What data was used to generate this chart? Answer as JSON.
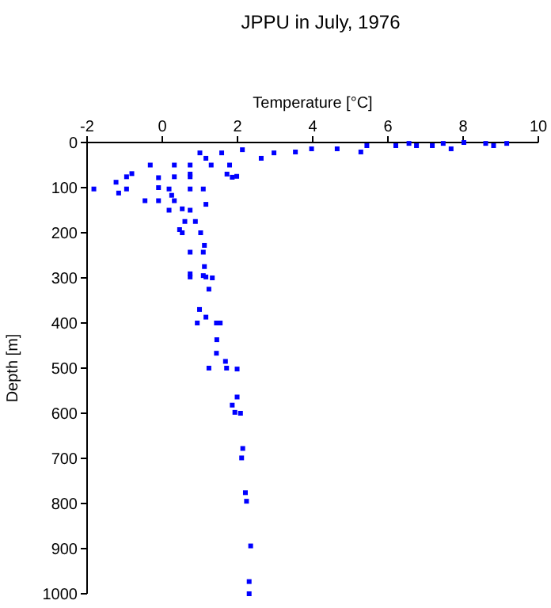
{
  "chart_data": {
    "type": "scatter",
    "title": "JPPU in July, 1976",
    "xlabel": "Temperature [°C]",
    "ylabel": "Depth [m]",
    "xlim": [
      -2,
      10
    ],
    "xticks": [
      -2,
      0,
      2,
      4,
      6,
      8,
      10
    ],
    "ylim": [
      1000,
      0
    ],
    "yticks": [
      0,
      100,
      200,
      300,
      400,
      500,
      600,
      700,
      800,
      900,
      1000
    ],
    "grid": false,
    "marker": "square",
    "series": [
      {
        "color": "#0000ff",
        "x": [
          6.56,
          7.47,
          8.02,
          8.6,
          9.16,
          7.18,
          7.68,
          6.76,
          6.21,
          5.44,
          5.28,
          4.65,
          3.97,
          3.54,
          2.97,
          2.63,
          2.13,
          1.58,
          1.0,
          8.81,
          -0.32,
          0.32,
          0.74,
          1.3,
          1.79,
          1.72,
          0.74,
          1.98,
          1.86,
          0.32,
          0.74,
          -0.81,
          -0.95,
          -1.23,
          -0.1,
          -1.82,
          -0.1,
          0.18,
          0.74,
          1.09,
          -1.16,
          -0.95,
          -0.46,
          -0.1,
          0.32,
          1.16,
          0.25,
          0.18,
          0.74,
          0.53,
          0.6,
          0.88,
          0.46,
          0.53,
          1.02,
          1.12,
          0.74,
          1.09,
          1.12,
          0.74,
          1.16,
          1.16,
          0.74,
          1.09,
          1.33,
          1.24,
          0.99,
          1.16,
          0.93,
          1.44,
          1.54,
          1.45,
          1.44,
          1.68,
          1.24,
          1.71,
          1.99,
          1.99,
          1.86,
          1.93,
          2.08,
          2.14,
          2.11,
          2.21,
          2.24,
          2.35,
          2.31,
          2.31
        ],
        "values": [
          2,
          2,
          0,
          2,
          2,
          7,
          14,
          7,
          7,
          7,
          21,
          14,
          14,
          21,
          23,
          35,
          16,
          23,
          23,
          7,
          50,
          50,
          50,
          50,
          50,
          70,
          70,
          75,
          77,
          76,
          76,
          69,
          76,
          88,
          78,
          103,
          100,
          103,
          103,
          103,
          112,
          103,
          129,
          129,
          129,
          137,
          117,
          150,
          150,
          147,
          175,
          175,
          193,
          200,
          200,
          228,
          243,
          243,
          275,
          298,
          298,
          35,
          291,
          295,
          300,
          325,
          370,
          387,
          400,
          400,
          400,
          437,
          467,
          485,
          500,
          500,
          502,
          564,
          582,
          598,
          600,
          678,
          699,
          776,
          795,
          894,
          973,
          1000
        ]
      }
    ]
  }
}
